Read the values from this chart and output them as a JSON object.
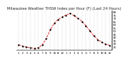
{
  "title": "Milwaukee Weather THSW Index per Hour (F) (Last 24 Hours)",
  "x_labels": [
    "1",
    "2",
    "3",
    "4",
    "5",
    "6",
    "7",
    "8",
    "9",
    "10",
    "11",
    "12",
    "1",
    "2",
    "3",
    "4",
    "5",
    "6",
    "7",
    "8",
    "9",
    "10",
    "11",
    "12"
  ],
  "hours": [
    0,
    1,
    2,
    3,
    4,
    5,
    6,
    7,
    8,
    9,
    10,
    11,
    12,
    13,
    14,
    15,
    16,
    17,
    18,
    19,
    20,
    21,
    22,
    23
  ],
  "values": [
    28,
    26,
    24,
    23,
    22,
    23,
    28,
    38,
    52,
    62,
    68,
    72,
    75,
    78,
    74,
    70,
    65,
    58,
    50,
    42,
    36,
    32,
    29,
    27
  ],
  "line_color": "#dd0000",
  "marker_color": "#000000",
  "grid_color": "#aaaaaa",
  "bg_color": "#ffffff",
  "plot_bg": "#ffffff",
  "ylim": [
    20,
    82
  ],
  "yticks": [
    25,
    30,
    35,
    40,
    45,
    50,
    55,
    60,
    65,
    70,
    75,
    80
  ],
  "title_fontsize": 3.8,
  "tick_fontsize": 2.8,
  "line_width": 0.6,
  "marker_size": 1.2
}
